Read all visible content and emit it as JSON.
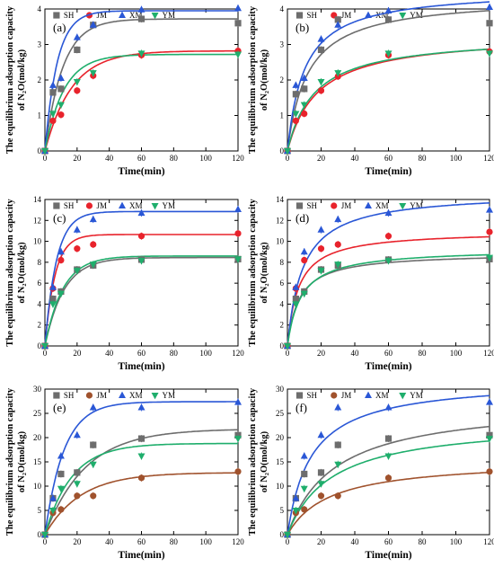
{
  "chart_data": [
    {
      "type": "scatter",
      "panel_label": "(a)",
      "xlabel": "Time(min)",
      "ylabel": [
        "The equilibrium adsorption capacity",
        "of N₂O(mol/kg)"
      ],
      "xlim": [
        0,
        120
      ],
      "ylim": [
        0,
        4
      ],
      "xticks": [
        0,
        20,
        40,
        60,
        80,
        100,
        120
      ],
      "yticks": [
        0,
        1,
        2,
        3,
        4
      ],
      "legend": "top",
      "x": [
        0,
        5,
        10,
        20,
        30,
        60,
        120
      ],
      "series": [
        {
          "name": "SH",
          "color": "#6d6d6d",
          "marker": "square",
          "values": [
            0,
            1.65,
            1.75,
            2.85,
            3.55,
            3.72,
            3.6
          ],
          "fit_qe": 3.72,
          "fit_k": 0.09
        },
        {
          "name": "JM",
          "color": "#e8232c",
          "marker": "circle",
          "values": [
            0,
            0.85,
            1.02,
            1.7,
            2.12,
            2.7,
            2.82
          ],
          "fit_qe": 2.82,
          "fit_k": 0.06
        },
        {
          "name": "XM",
          "color": "#2a57d6",
          "marker": "triangle-up",
          "values": [
            0,
            1.85,
            2.05,
            3.2,
            3.55,
            3.98,
            4.02
          ],
          "fit_qe": 3.95,
          "fit_k": 0.13
        },
        {
          "name": "YM",
          "color": "#1fae6c",
          "marker": "triangle-down",
          "values": [
            0,
            1.05,
            1.3,
            1.95,
            2.2,
            2.75,
            2.72
          ],
          "fit_qe": 2.72,
          "fit_k": 0.085
        }
      ]
    },
    {
      "type": "scatter",
      "panel_label": "(b)",
      "xlabel": "Time(min)",
      "ylabel": [
        "The equilibrium adsorption capacity",
        "of N₂O(mol/kg)"
      ],
      "xlim": [
        0,
        120
      ],
      "ylim": [
        0,
        4
      ],
      "xticks": [
        0,
        20,
        40,
        60,
        80,
        100,
        120
      ],
      "yticks": [
        0,
        1,
        2,
        3,
        4
      ],
      "legend": "top",
      "x": [
        0,
        5,
        10,
        20,
        30,
        60,
        120
      ],
      "series": [
        {
          "name": "SH",
          "color": "#6d6d6d",
          "marker": "square",
          "values": [
            0,
            1.6,
            1.75,
            2.85,
            3.7,
            3.7,
            3.6
          ],
          "fit_qe": 4.35,
          "fit_b": 12
        },
        {
          "name": "JM",
          "color": "#e8232c",
          "marker": "circle",
          "values": [
            0,
            0.85,
            1.05,
            1.7,
            2.1,
            2.7,
            2.8
          ],
          "fit_qe": 3.3,
          "fit_b": 18
        },
        {
          "name": "XM",
          "color": "#2a57d6",
          "marker": "triangle-up",
          "values": [
            0,
            1.85,
            2.05,
            3.15,
            3.55,
            3.95,
            4.05
          ],
          "fit_qe": 4.55,
          "fit_b": 10
        },
        {
          "name": "YM",
          "color": "#1fae6c",
          "marker": "triangle-down",
          "values": [
            0,
            1.05,
            1.3,
            1.95,
            2.2,
            2.75,
            2.75
          ],
          "fit_qe": 3.25,
          "fit_b": 16
        }
      ]
    },
    {
      "type": "scatter",
      "panel_label": "(c)",
      "xlabel": "Time(min)",
      "ylabel": [
        "The equilibrium adsorption capacity",
        "of N₂O(mol/kg)"
      ],
      "xlim": [
        0,
        120
      ],
      "ylim": [
        0,
        14
      ],
      "xticks": [
        0,
        20,
        40,
        60,
        80,
        100,
        120
      ],
      "yticks": [
        0,
        2,
        4,
        6,
        8,
        10,
        12,
        14
      ],
      "legend": "top",
      "x": [
        0,
        5,
        10,
        20,
        30,
        60,
        120
      ],
      "series": [
        {
          "name": "SH",
          "color": "#6d6d6d",
          "marker": "square",
          "values": [
            0,
            4.5,
            5.2,
            7.3,
            7.7,
            8.25,
            8.3
          ],
          "fit_qe": 8.45,
          "fit_k": 0.085
        },
        {
          "name": "JM",
          "color": "#e8232c",
          "marker": "circle",
          "values": [
            0,
            5.5,
            8.2,
            9.3,
            9.7,
            10.5,
            10.75
          ],
          "fit_qe": 10.65,
          "fit_k": 0.16
        },
        {
          "name": "XM",
          "color": "#2a57d6",
          "marker": "triangle-up",
          "values": [
            0,
            5.6,
            9.0,
            11.1,
            12.1,
            12.7,
            13.05
          ],
          "fit_qe": 12.85,
          "fit_k": 0.14
        },
        {
          "name": "YM",
          "color": "#1fae6c",
          "marker": "triangle-down",
          "values": [
            0,
            4.0,
            5.0,
            7.2,
            7.8,
            8.15,
            8.3
          ],
          "fit_qe": 8.6,
          "fit_k": 0.09
        }
      ]
    },
    {
      "type": "scatter",
      "panel_label": "(d)",
      "xlabel": "Time(min)",
      "ylabel": [
        "The equilibrium adsorption capacity",
        "of N₂O(mol/kg)"
      ],
      "xlim": [
        0,
        120
      ],
      "ylim": [
        0,
        14
      ],
      "xticks": [
        0,
        20,
        40,
        60,
        80,
        100,
        120
      ],
      "yticks": [
        0,
        2,
        4,
        6,
        8,
        10,
        12,
        14
      ],
      "legend": "top",
      "x": [
        0,
        5,
        10,
        20,
        30,
        60,
        120
      ],
      "series": [
        {
          "name": "SH",
          "color": "#6d6d6d",
          "marker": "square",
          "values": [
            0,
            4.5,
            5.2,
            7.3,
            7.7,
            8.25,
            8.3
          ],
          "fit_qe": 8.9,
          "fit_b": 7
        },
        {
          "name": "JM",
          "color": "#e8232c",
          "marker": "circle",
          "values": [
            0,
            5.5,
            8.2,
            9.3,
            9.7,
            10.5,
            10.9
          ],
          "fit_qe": 11.0,
          "fit_b": 6.5
        },
        {
          "name": "XM",
          "color": "#2a57d6",
          "marker": "triangle-up",
          "values": [
            0,
            5.6,
            9.0,
            11.1,
            12.1,
            12.7,
            13.0
          ],
          "fit_qe": 14.7,
          "fit_b": 9
        },
        {
          "name": "YM",
          "color": "#1fae6c",
          "marker": "triangle-down",
          "values": [
            0,
            4.0,
            5.0,
            7.2,
            7.8,
            8.15,
            8.45
          ],
          "fit_qe": 9.3,
          "fit_b": 8
        }
      ]
    },
    {
      "type": "scatter",
      "panel_label": "(e)",
      "xlabel": "Time(min)",
      "ylabel": [
        "The equilibrium adsorption capacity",
        "of N₂O(mol/kg)"
      ],
      "xlim": [
        0,
        120
      ],
      "ylim": [
        0,
        30
      ],
      "xticks": [
        0,
        20,
        40,
        60,
        80,
        100,
        120
      ],
      "yticks": [
        0,
        5,
        10,
        15,
        20,
        25,
        30
      ],
      "legend": "top",
      "x": [
        0,
        5,
        10,
        20,
        30,
        60,
        120
      ],
      "series": [
        {
          "name": "SH",
          "color": "#6d6d6d",
          "marker": "square",
          "values": [
            0,
            7.5,
            12.5,
            12.8,
            18.5,
            19.8,
            20.5
          ],
          "fit_qe": 21.8,
          "fit_k": 0.04
        },
        {
          "name": "JM",
          "color": "#a0522d",
          "marker": "circle",
          "values": [
            0,
            4.5,
            5.2,
            8.0,
            8.0,
            11.7,
            13.0
          ],
          "fit_qe": 12.8,
          "fit_k": 0.045
        },
        {
          "name": "XM",
          "color": "#2a57d6",
          "marker": "triangle-up",
          "values": [
            0,
            7.5,
            16.2,
            20.5,
            26.2,
            26.2,
            27.3
          ],
          "fit_qe": 27.4,
          "fit_k": 0.085
        },
        {
          "name": "YM",
          "color": "#1fae6c",
          "marker": "triangle-down",
          "values": [
            0,
            5.0,
            9.5,
            10.5,
            14.5,
            16.2,
            19.8
          ],
          "fit_qe": 18.8,
          "fit_k": 0.06
        }
      ]
    },
    {
      "type": "scatter",
      "panel_label": "(f)",
      "xlabel": "Time(min)",
      "ylabel": [
        "The equilibrium adsorption capacity",
        "of N₂O(mol/kg)"
      ],
      "xlim": [
        0,
        120
      ],
      "ylim": [
        0,
        30
      ],
      "xticks": [
        0,
        20,
        40,
        60,
        80,
        100,
        120
      ],
      "yticks": [
        0,
        5,
        10,
        15,
        20,
        25,
        30
      ],
      "legend": "top",
      "x": [
        0,
        5,
        10,
        20,
        30,
        60,
        120
      ],
      "series": [
        {
          "name": "SH",
          "color": "#6d6d6d",
          "marker": "square",
          "values": [
            0,
            7.5,
            12.5,
            12.8,
            18.5,
            19.8,
            20.5
          ],
          "fit_qe": 27.5,
          "fit_b": 28
        },
        {
          "name": "JM",
          "color": "#a0522d",
          "marker": "circle",
          "values": [
            0,
            4.5,
            5.2,
            8.0,
            8.0,
            11.7,
            13.0
          ],
          "fit_qe": 15.5,
          "fit_b": 25
        },
        {
          "name": "XM",
          "color": "#2a57d6",
          "marker": "triangle-up",
          "values": [
            0,
            7.5,
            16.2,
            20.5,
            26.2,
            26.2,
            27.3
          ],
          "fit_qe": 32.0,
          "fit_b": 14
        },
        {
          "name": "YM",
          "color": "#1fae6c",
          "marker": "triangle-down",
          "values": [
            0,
            5.0,
            9.5,
            10.5,
            14.5,
            16.2,
            19.8
          ],
          "fit_qe": 23.5,
          "fit_b": 26
        }
      ]
    }
  ]
}
